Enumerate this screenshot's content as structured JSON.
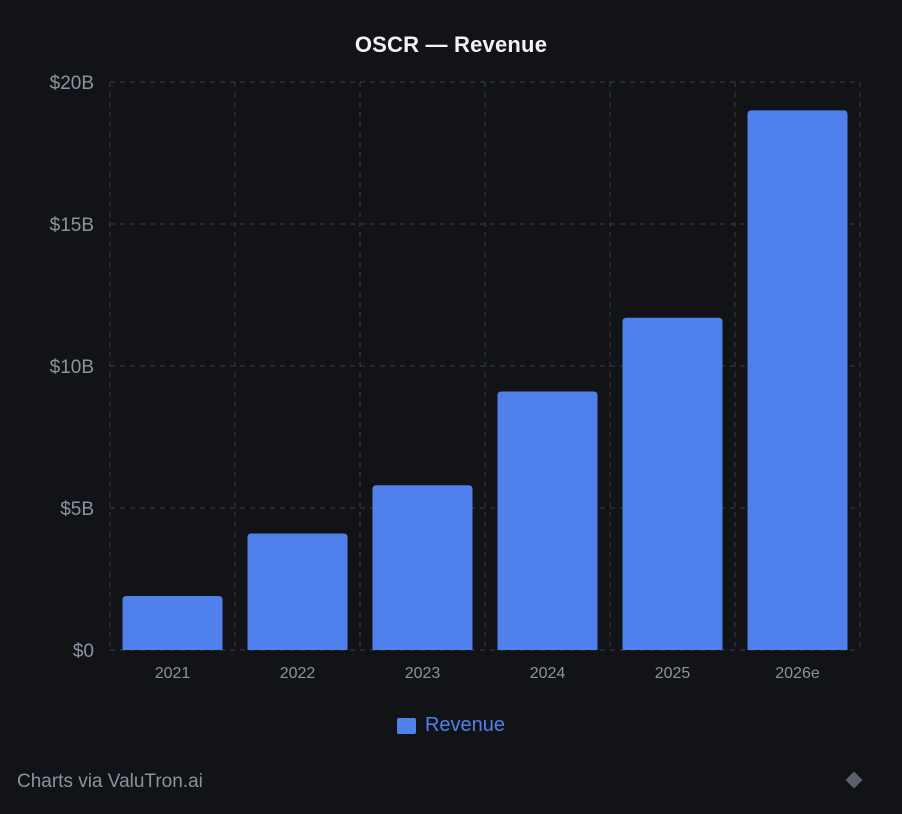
{
  "footer": {
    "text": "Charts via ValuTron.ai",
    "icon": "diamond-icon"
  },
  "colors": {
    "background": "#121317",
    "bar": "#4f80ec",
    "grid": "#34373f",
    "tick_text": "#8b93a2",
    "title_text": "#f2f3f5"
  },
  "chart_data": {
    "type": "bar",
    "title": "OSCR — Revenue",
    "categories": [
      "2021",
      "2022",
      "2023",
      "2024",
      "2025",
      "2026e"
    ],
    "series": [
      {
        "name": "Revenue",
        "values": [
          1.9,
          4.1,
          5.8,
          9.1,
          11.7,
          19.0
        ]
      }
    ],
    "y_ticks": [
      {
        "value": 0,
        "label": "$0"
      },
      {
        "value": 5,
        "label": "$5B"
      },
      {
        "value": 10,
        "label": "$10B"
      },
      {
        "value": 15,
        "label": "$15B"
      },
      {
        "value": 20,
        "label": "$20B"
      }
    ],
    "ylim": [
      0,
      20
    ],
    "xlabel": "",
    "ylabel": "",
    "grid": true,
    "legend": "bottom-center"
  }
}
